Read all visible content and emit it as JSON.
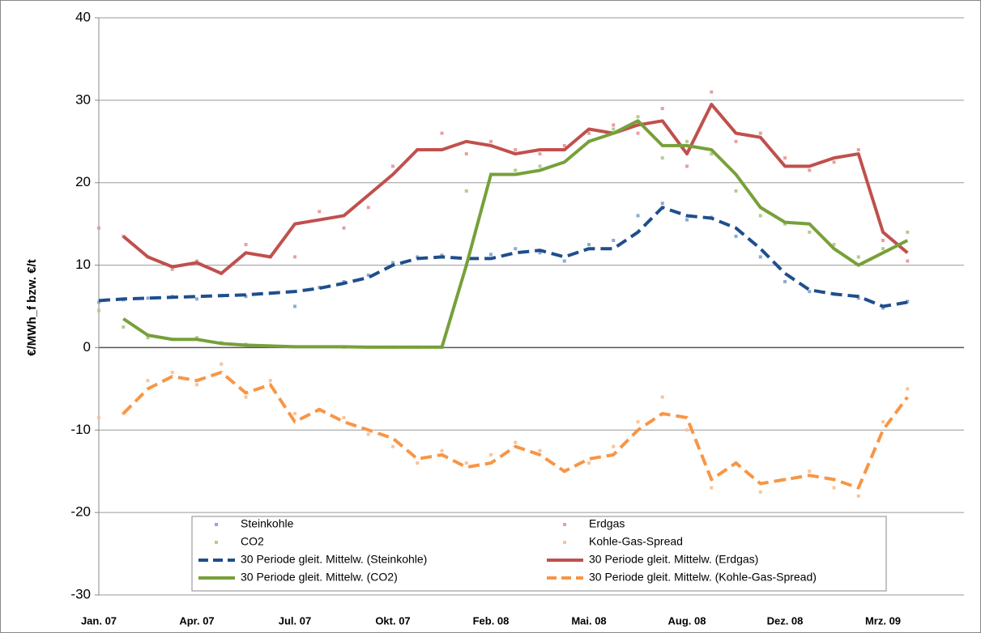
{
  "chart_data": {
    "type": "line",
    "y_label": "€/MWh_f bzw. €/t",
    "categories": [
      "Jan. 07",
      null,
      null,
      null,
      "Apr. 07",
      null,
      null,
      null,
      "Jul. 07",
      null,
      null,
      null,
      "Okt. 07",
      null,
      null,
      null,
      "Feb. 08",
      null,
      null,
      null,
      "Mai. 08",
      null,
      null,
      null,
      "Aug. 08",
      null,
      null,
      null,
      "Dez. 08",
      null,
      null,
      null,
      "Mrz. 09",
      null
    ],
    "ylim": [
      -30,
      40
    ],
    "yticks": [
      -30,
      -20,
      -10,
      0,
      10,
      20,
      30,
      40
    ],
    "grid": true,
    "legend": "bottom",
    "series": [
      {
        "name": "Steinkohle",
        "color": "#8eaad0",
        "style": "markers",
        "values": [
          5.5,
          5.8,
          6,
          6.2,
          5.9,
          6.3,
          6.2,
          6.6,
          5,
          7.3,
          8,
          8.8,
          10.3,
          11,
          11.2,
          10,
          11.3,
          12,
          11.5,
          10.5,
          12.5,
          13,
          16,
          17.5,
          15.5,
          15.8,
          13.5,
          11,
          8,
          6.8,
          6.5,
          6,
          4.8,
          5.6
        ]
      },
      {
        "name": "Erdgas",
        "color": "#e6a0a0",
        "style": "markers",
        "values": [
          14.5,
          13.5,
          11,
          9.5,
          10.5,
          9,
          12.5,
          11,
          11,
          16.5,
          14.5,
          17,
          22,
          24,
          26,
          23.5,
          25,
          24,
          23.5,
          24.5,
          26,
          27,
          26,
          29,
          22,
          31,
          25,
          26,
          23,
          21.5,
          22.5,
          24,
          13,
          10.5
        ]
      },
      {
        "name": "CO2",
        "color": "#b5cc8e",
        "style": "markers",
        "values": [
          4.5,
          2.5,
          1.2,
          1,
          1.2,
          0.6,
          0.4,
          0.2,
          0.1,
          0.1,
          0.05,
          0.05,
          0.05,
          0.05,
          0.05,
          19,
          21,
          21.5,
          22,
          24,
          25,
          26.5,
          28,
          23,
          25,
          23.5,
          19,
          16,
          15,
          14,
          12.5,
          11,
          12,
          14
        ]
      },
      {
        "name": "Kohle-Gas-Spread",
        "color": "#f8c49c",
        "style": "markers",
        "values": [
          -8.5,
          -8,
          -4,
          -3,
          -4.5,
          -2,
          -6,
          -4,
          -8,
          -7.5,
          -8.5,
          -10.5,
          -12,
          -14,
          -12.5,
          -14,
          -13,
          -11.5,
          -12.5,
          -15,
          -14,
          -12,
          -9,
          -6,
          -10,
          -17,
          -14,
          -17.5,
          -16,
          -15,
          -17,
          -18,
          -9,
          -5
        ]
      },
      {
        "name": "30 Periode gleit. Mittelw. (Steinkohle)",
        "color": "#1f4e8c",
        "style": "line",
        "dash": true,
        "values": [
          5.7,
          5.9,
          6,
          6.1,
          6.2,
          6.3,
          6.4,
          6.6,
          6.8,
          7.2,
          7.8,
          8.5,
          10,
          10.8,
          11,
          10.8,
          10.8,
          11.5,
          11.8,
          11,
          12,
          12,
          14,
          17,
          16,
          15.7,
          14.5,
          12,
          9,
          7,
          6.5,
          6.2,
          5,
          5.5
        ]
      },
      {
        "name": "30 Periode gleit. Mittelw. (Erdgas)",
        "color": "#c0504d",
        "style": "line",
        "dash": false,
        "values": [
          null,
          13.5,
          11,
          9.8,
          10.3,
          9,
          11.5,
          11,
          15,
          15.5,
          16,
          18.5,
          21,
          24,
          24,
          25,
          24.5,
          23.5,
          24,
          24,
          26.5,
          26,
          27,
          27.5,
          23.5,
          29.5,
          26,
          25.5,
          22,
          22,
          23,
          23.5,
          14,
          11.5
        ]
      },
      {
        "name": "30 Periode gleit. Mittelw. (CO2)",
        "color": "#77a03a",
        "style": "line",
        "dash": false,
        "values": [
          null,
          3.5,
          1.5,
          1,
          1,
          0.5,
          0.3,
          0.2,
          0.1,
          0.1,
          0.1,
          0.05,
          0.05,
          0.05,
          0.05,
          10,
          21,
          21,
          21.5,
          22.5,
          25,
          26,
          27.5,
          24.5,
          24.5,
          24,
          21,
          17,
          15.2,
          15,
          12,
          10,
          11.5,
          13
        ]
      },
      {
        "name": "30 Periode gleit. Mittelw. (Kohle-Gas-Spread)",
        "color": "#f79646",
        "style": "line",
        "dash": true,
        "values": [
          null,
          -8,
          -5,
          -3.5,
          -4,
          -3,
          -5.5,
          -4.5,
          -9,
          -7.5,
          -9,
          -10,
          -11,
          -13.5,
          -13,
          -14.5,
          -14,
          -12,
          -13,
          -15,
          -13.5,
          -13,
          -10,
          -8,
          -8.5,
          -16,
          -14,
          -16.5,
          -16,
          -15.5,
          -16,
          -17,
          -10,
          -6
        ]
      }
    ]
  }
}
